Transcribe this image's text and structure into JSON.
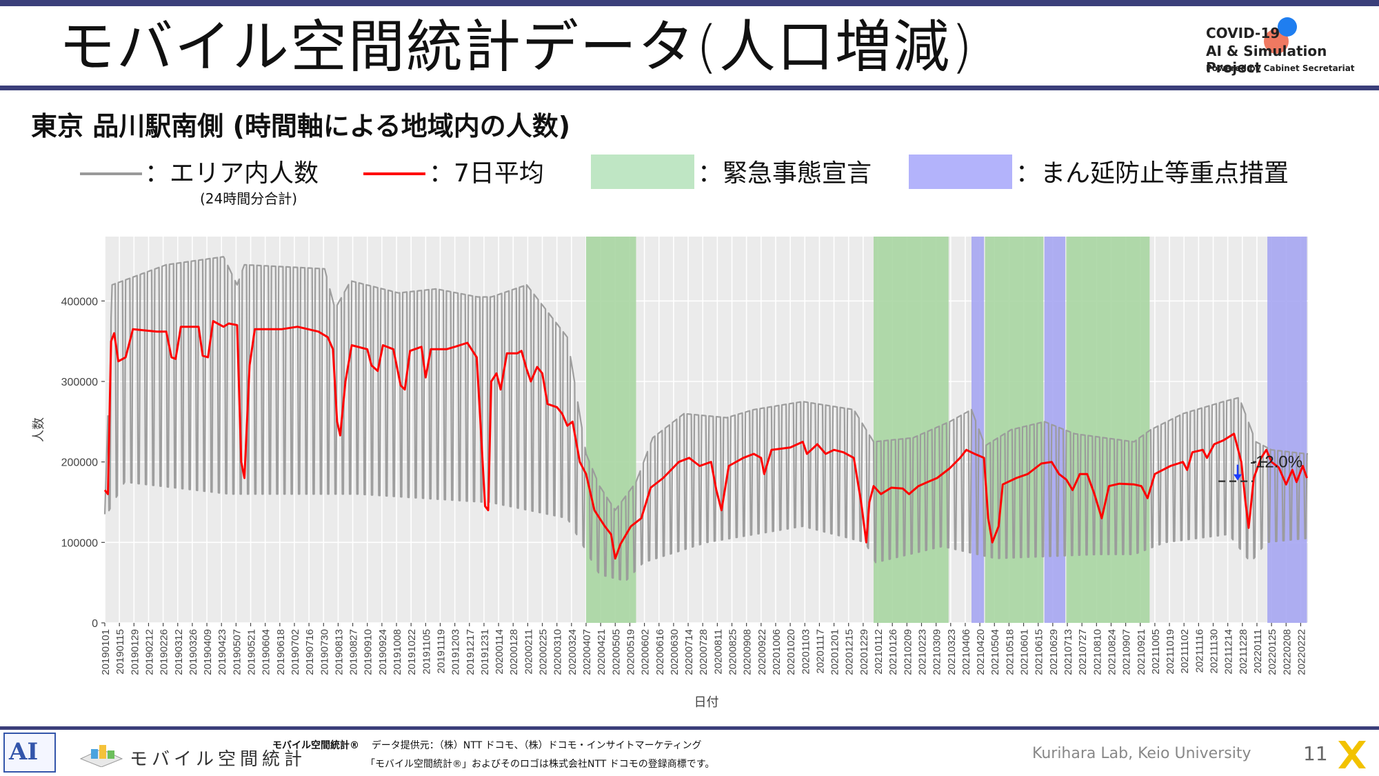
{
  "slide": {
    "title": "モバイル空間統計データ(人口増減)",
    "subtitle": "東京 品川駅南側 (時間軸による地域内の人数)",
    "logo": {
      "line1": "COVID-19",
      "line2": "AI & Simulation Project",
      "line3": "Powered by Cabinet Secretariat"
    }
  },
  "legend": {
    "area_label": "：エリア内人数",
    "area_note": "(24時間分合計)",
    "avg_label": "：7日平均",
    "emergency_label": "：緊急事態宣言",
    "semi_label": "：まん延防止等重点措置"
  },
  "colors": {
    "raw": "#9a9a9a",
    "avg": "#ff0000",
    "emergency": "#a9d6a2",
    "semi": "#a6a6f2",
    "panel": "#ebebeb",
    "accent_bar": "#3b3f7a"
  },
  "chart_data": {
    "type": "line",
    "xlabel": "日付",
    "ylabel": "人数",
    "ylim": [
      0,
      480000
    ],
    "yticks": [
      0,
      100000,
      200000,
      300000,
      400000
    ],
    "ytick_labels": [
      "0",
      "100000",
      "200000",
      "300000",
      "400000"
    ],
    "x_start": "2019-01-01",
    "x_end": "2022-03-01",
    "xtick_labels": [
      "20190101",
      "20190115",
      "20190129",
      "20190212",
      "20190226",
      "20190312",
      "20190326",
      "20190409",
      "20190423",
      "20190507",
      "20190521",
      "20190604",
      "20190618",
      "20190702",
      "20190716",
      "20190730",
      "20190813",
      "20190827",
      "20190910",
      "20190924",
      "20191008",
      "20191022",
      "20191105",
      "20191119",
      "20191203",
      "20191217",
      "20191231",
      "20200114",
      "20200128",
      "20200211",
      "20200225",
      "20200310",
      "20200324",
      "20200407",
      "20200421",
      "20200505",
      "20200519",
      "20200602",
      "20200616",
      "20200630",
      "20200714",
      "20200728",
      "20200811",
      "20200825",
      "20200908",
      "20200922",
      "20201006",
      "20201020",
      "20201103",
      "20201117",
      "20201201",
      "20201215",
      "20201229",
      "20210112",
      "20210126",
      "20210209",
      "20210223",
      "20210309",
      "20210323",
      "20210406",
      "20210420",
      "20210504",
      "20210518",
      "20210601",
      "20210615",
      "20210629",
      "20210713",
      "20210727",
      "20210810",
      "20210824",
      "20210907",
      "20210921",
      "20211005",
      "20211019",
      "20211102",
      "20211116",
      "20211130",
      "20211214",
      "20211228",
      "20220111",
      "20220125",
      "20220208",
      "20220222"
    ],
    "emergency_periods": [
      [
        "2020-04-07",
        "2020-05-25"
      ],
      [
        "2021-01-08",
        "2021-03-21"
      ],
      [
        "2021-04-25",
        "2021-06-20"
      ],
      [
        "2021-07-12",
        "2021-09-30"
      ]
    ],
    "semi_periods": [
      [
        "2021-04-12",
        "2021-04-24"
      ],
      [
        "2021-06-21",
        "2021-07-11"
      ],
      [
        "2022-01-21",
        "2022-02-28"
      ]
    ],
    "series": [
      {
        "name": "エリア内人数",
        "weekday_level": [
          [
            "2019-01-01",
            135000
          ],
          [
            "2019-01-08",
            420000
          ],
          [
            "2019-03-01",
            445000
          ],
          [
            "2019-04-25",
            455000
          ],
          [
            "2019-05-08",
            420000
          ],
          [
            "2019-05-15",
            445000
          ],
          [
            "2019-07-31",
            440000
          ],
          [
            "2019-08-10",
            390000
          ],
          [
            "2019-08-25",
            425000
          ],
          [
            "2019-10-10",
            410000
          ],
          [
            "2019-11-15",
            415000
          ],
          [
            "2019-12-25",
            405000
          ],
          [
            "2020-01-07",
            405000
          ],
          [
            "2020-02-10",
            420000
          ],
          [
            "2020-02-25",
            395000
          ],
          [
            "2020-03-20",
            355000
          ],
          [
            "2020-04-07",
            210000
          ],
          [
            "2020-04-20",
            170000
          ],
          [
            "2020-05-05",
            140000
          ],
          [
            "2020-05-25",
            175000
          ],
          [
            "2020-06-10",
            230000
          ],
          [
            "2020-07-10",
            260000
          ],
          [
            "2020-08-20",
            255000
          ],
          [
            "2020-09-15",
            265000
          ],
          [
            "2020-11-01",
            275000
          ],
          [
            "2020-12-20",
            265000
          ],
          [
            "2021-01-08",
            225000
          ],
          [
            "2021-02-15",
            230000
          ],
          [
            "2021-03-22",
            250000
          ],
          [
            "2021-04-12",
            265000
          ],
          [
            "2021-04-25",
            220000
          ],
          [
            "2021-05-20",
            240000
          ],
          [
            "2021-06-21",
            250000
          ],
          [
            "2021-07-20",
            235000
          ],
          [
            "2021-09-15",
            225000
          ],
          [
            "2021-10-01",
            240000
          ],
          [
            "2021-11-01",
            260000
          ],
          [
            "2021-12-10",
            275000
          ],
          [
            "2021-12-25",
            280000
          ],
          [
            "2022-01-10",
            225000
          ],
          [
            "2022-01-25",
            215000
          ],
          [
            "2022-02-28",
            210000
          ]
        ],
        "weekend_level": [
          [
            "2019-01-01",
            130000
          ],
          [
            "2019-01-20",
            175000
          ],
          [
            "2019-05-01",
            160000
          ],
          [
            "2019-09-01",
            160000
          ],
          [
            "2019-12-31",
            150000
          ],
          [
            "2020-01-05",
            150000
          ],
          [
            "2020-03-20",
            130000
          ],
          [
            "2020-04-20",
            60000
          ],
          [
            "2020-05-15",
            52000
          ],
          [
            "2020-06-01",
            75000
          ],
          [
            "2020-08-01",
            100000
          ],
          [
            "2020-11-01",
            120000
          ],
          [
            "2020-12-31",
            100000
          ],
          [
            "2021-01-10",
            75000
          ],
          [
            "2021-03-15",
            95000
          ],
          [
            "2021-05-05",
            80000
          ],
          [
            "2021-08-10",
            85000
          ],
          [
            "2021-09-15",
            85000
          ],
          [
            "2021-10-15",
            100000
          ],
          [
            "2021-12-15",
            110000
          ],
          [
            "2022-01-05",
            75000
          ],
          [
            "2022-01-20",
            100000
          ],
          [
            "2022-02-28",
            105000
          ]
        ]
      },
      {
        "name": "7日平均",
        "points": [
          [
            "2019-01-01",
            165000
          ],
          [
            "2019-01-04",
            160000
          ],
          [
            "2019-01-07",
            350000
          ],
          [
            "2019-01-10",
            360000
          ],
          [
            "2019-01-14",
            325000
          ],
          [
            "2019-01-21",
            330000
          ],
          [
            "2019-01-28",
            365000
          ],
          [
            "2019-02-20",
            362000
          ],
          [
            "2019-03-01",
            362000
          ],
          [
            "2019-03-06",
            330000
          ],
          [
            "2019-03-10",
            328000
          ],
          [
            "2019-03-15",
            368000
          ],
          [
            "2019-04-01",
            368000
          ],
          [
            "2019-04-05",
            332000
          ],
          [
            "2019-04-10",
            330000
          ],
          [
            "2019-04-15",
            375000
          ],
          [
            "2019-04-25",
            368000
          ],
          [
            "2019-04-30",
            372000
          ],
          [
            "2019-05-08",
            370000
          ],
          [
            "2019-05-12",
            200000
          ],
          [
            "2019-05-15",
            180000
          ],
          [
            "2019-05-20",
            320000
          ],
          [
            "2019-05-25",
            365000
          ],
          [
            "2019-06-20",
            365000
          ],
          [
            "2019-07-05",
            368000
          ],
          [
            "2019-07-25",
            362000
          ],
          [
            "2019-08-03",
            355000
          ],
          [
            "2019-08-08",
            340000
          ],
          [
            "2019-08-12",
            250000
          ],
          [
            "2019-08-15",
            233000
          ],
          [
            "2019-08-20",
            300000
          ],
          [
            "2019-08-26",
            345000
          ],
          [
            "2019-09-10",
            340000
          ],
          [
            "2019-09-14",
            320000
          ],
          [
            "2019-09-20",
            313000
          ],
          [
            "2019-09-25",
            345000
          ],
          [
            "2019-10-05",
            340000
          ],
          [
            "2019-10-12",
            295000
          ],
          [
            "2019-10-16",
            290000
          ],
          [
            "2019-10-21",
            338000
          ],
          [
            "2019-11-01",
            343000
          ],
          [
            "2019-11-05",
            305000
          ],
          [
            "2019-11-10",
            340000
          ],
          [
            "2019-11-25",
            340000
          ],
          [
            "2019-12-03",
            343000
          ],
          [
            "2019-12-15",
            348000
          ],
          [
            "2019-12-24",
            330000
          ],
          [
            "2019-12-28",
            240000
          ],
          [
            "2020-01-01",
            145000
          ],
          [
            "2020-01-04",
            140000
          ],
          [
            "2020-01-07",
            300000
          ],
          [
            "2020-01-12",
            310000
          ],
          [
            "2020-01-16",
            290000
          ],
          [
            "2020-01-22",
            335000
          ],
          [
            "2020-02-01",
            335000
          ],
          [
            "2020-02-05",
            338000
          ],
          [
            "2020-02-10",
            315000
          ],
          [
            "2020-02-14",
            300000
          ],
          [
            "2020-02-20",
            318000
          ],
          [
            "2020-02-25",
            310000
          ],
          [
            "2020-03-01",
            272000
          ],
          [
            "2020-03-10",
            268000
          ],
          [
            "2020-03-15",
            260000
          ],
          [
            "2020-03-20",
            245000
          ],
          [
            "2020-03-25",
            250000
          ],
          [
            "2020-04-01",
            200000
          ],
          [
            "2020-04-07",
            185000
          ],
          [
            "2020-04-15",
            140000
          ],
          [
            "2020-04-25",
            120000
          ],
          [
            "2020-05-01",
            110000
          ],
          [
            "2020-05-05",
            80000
          ],
          [
            "2020-05-10",
            98000
          ],
          [
            "2020-05-20",
            120000
          ],
          [
            "2020-05-30",
            130000
          ],
          [
            "2020-06-08",
            168000
          ],
          [
            "2020-06-20",
            180000
          ],
          [
            "2020-07-05",
            200000
          ],
          [
            "2020-07-15",
            205000
          ],
          [
            "2020-07-25",
            195000
          ],
          [
            "2020-08-05",
            200000
          ],
          [
            "2020-08-10",
            165000
          ],
          [
            "2020-08-15",
            140000
          ],
          [
            "2020-08-22",
            195000
          ],
          [
            "2020-09-05",
            205000
          ],
          [
            "2020-09-15",
            210000
          ],
          [
            "2020-09-22",
            205000
          ],
          [
            "2020-09-25",
            185000
          ],
          [
            "2020-10-02",
            215000
          ],
          [
            "2020-10-20",
            218000
          ],
          [
            "2020-11-01",
            225000
          ],
          [
            "2020-11-05",
            210000
          ],
          [
            "2020-11-15",
            222000
          ],
          [
            "2020-11-23",
            210000
          ],
          [
            "2020-12-01",
            215000
          ],
          [
            "2020-12-10",
            212000
          ],
          [
            "2020-12-20",
            205000
          ],
          [
            "2020-12-27",
            150000
          ],
          [
            "2021-01-01",
            100000
          ],
          [
            "2021-01-04",
            150000
          ],
          [
            "2021-01-08",
            170000
          ],
          [
            "2021-01-15",
            160000
          ],
          [
            "2021-01-25",
            168000
          ],
          [
            "2021-02-05",
            167000
          ],
          [
            "2021-02-11",
            160000
          ],
          [
            "2021-02-20",
            170000
          ],
          [
            "2021-03-01",
            175000
          ],
          [
            "2021-03-10",
            180000
          ],
          [
            "2021-03-22",
            192000
          ],
          [
            "2021-04-01",
            205000
          ],
          [
            "2021-04-07",
            215000
          ],
          [
            "2021-04-15",
            210000
          ],
          [
            "2021-04-24",
            205000
          ],
          [
            "2021-04-28",
            130000
          ],
          [
            "2021-05-02",
            100000
          ],
          [
            "2021-05-08",
            120000
          ],
          [
            "2021-05-12",
            172000
          ],
          [
            "2021-05-25",
            180000
          ],
          [
            "2021-06-05",
            185000
          ],
          [
            "2021-06-18",
            198000
          ],
          [
            "2021-06-28",
            200000
          ],
          [
            "2021-07-05",
            185000
          ],
          [
            "2021-07-12",
            178000
          ],
          [
            "2021-07-18",
            165000
          ],
          [
            "2021-07-25",
            185000
          ],
          [
            "2021-08-01",
            185000
          ],
          [
            "2021-08-08",
            160000
          ],
          [
            "2021-08-15",
            130000
          ],
          [
            "2021-08-22",
            170000
          ],
          [
            "2021-09-01",
            173000
          ],
          [
            "2021-09-15",
            172000
          ],
          [
            "2021-09-22",
            170000
          ],
          [
            "2021-09-28",
            155000
          ],
          [
            "2021-10-05",
            185000
          ],
          [
            "2021-10-20",
            195000
          ],
          [
            "2021-11-01",
            200000
          ],
          [
            "2021-11-05",
            190000
          ],
          [
            "2021-11-10",
            212000
          ],
          [
            "2021-11-20",
            215000
          ],
          [
            "2021-11-24",
            205000
          ],
          [
            "2021-12-01",
            222000
          ],
          [
            "2021-12-10",
            227000
          ],
          [
            "2021-12-20",
            235000
          ],
          [
            "2021-12-27",
            200000
          ],
          [
            "2021-12-31",
            150000
          ],
          [
            "2022-01-03",
            118000
          ],
          [
            "2022-01-08",
            180000
          ],
          [
            "2022-01-15",
            205000
          ],
          [
            "2022-01-20",
            215000
          ],
          [
            "2022-01-25",
            200000
          ],
          [
            "2022-02-01",
            193000
          ],
          [
            "2022-02-08",
            172000
          ],
          [
            "2022-02-14",
            190000
          ],
          [
            "2022-02-18",
            175000
          ],
          [
            "2022-02-24",
            195000
          ],
          [
            "2022-02-28",
            180000
          ]
        ]
      }
    ],
    "annotation": {
      "label": "-12.0%",
      "from": 200000,
      "to": 176000
    }
  },
  "footer": {
    "lab_logo": "AI",
    "mobile_text": "モバイル空間統計",
    "credit_brand": "モバイル空間統計®",
    "credit_line1": "データ提供元：（株）NTT ドコモ、（株）ドコモ・インサイトマーケティング",
    "credit_line2": "「モバイル空間統計®」およびそのロゴは株式会社NTT ドコモの登録商標です。",
    "lab_name": "Kurihara Lab, Keio University",
    "page_number": "11"
  }
}
